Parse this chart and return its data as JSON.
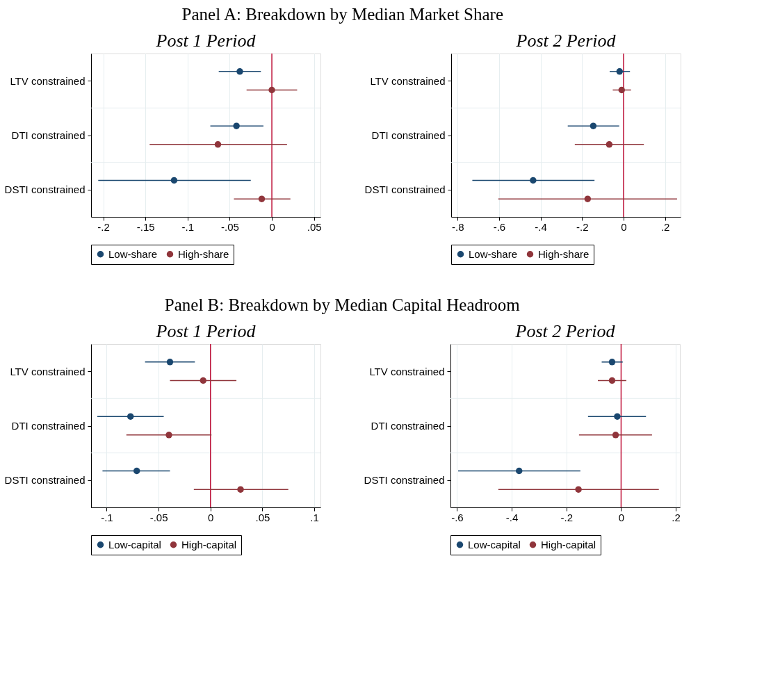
{
  "chart_data": [
    {
      "type": "scatter",
      "orientation": "horizontal",
      "title": "Post 1 Period",
      "annotations": [
        "Panel A: Breakdown by Median Market Share"
      ],
      "categories": [
        "LTV constrained",
        "DTI constrained",
        "DSTI constrained"
      ],
      "xlim": [
        -0.2145,
        0.0577
      ],
      "xticks": [
        {
          "value": -0.2,
          "label": "-.2"
        },
        {
          "value": -0.15,
          "label": "-.15"
        },
        {
          "value": -0.1,
          "label": "-.1"
        },
        {
          "value": -0.05,
          "label": "-.05"
        },
        0,
        {
          "value": 0.05,
          "label": ".05"
        }
      ],
      "grid": true,
      "legend": "bottom",
      "marker": "circle",
      "ref_lines": [
        {
          "axis": "x",
          "value": 0,
          "color": "#c0163c"
        }
      ],
      "series": [
        {
          "name": "Low-share",
          "color": "#1a476f",
          "values": [
            -0.038,
            -0.042,
            -0.116
          ],
          "errors": [
            [
              -0.063,
              -0.013
            ],
            [
              -0.073,
              -0.01
            ],
            [
              -0.206,
              -0.025
            ]
          ]
        },
        {
          "name": "High-share",
          "color": "#90353b",
          "values": [
            0.0,
            -0.064,
            -0.012
          ],
          "errors": [
            [
              -0.03,
              0.03
            ],
            [
              -0.145,
              0.018
            ],
            [
              -0.045,
              0.022
            ]
          ]
        }
      ]
    },
    {
      "type": "scatter",
      "orientation": "horizontal",
      "title": "Post 2 Period",
      "categories": [
        "LTV constrained",
        "DTI constrained",
        "DSTI constrained"
      ],
      "xlim": [
        -0.831,
        0.275
      ],
      "xticks": [
        {
          "value": -0.8,
          "label": "-.8"
        },
        {
          "value": -0.6,
          "label": "-.6"
        },
        {
          "value": -0.4,
          "label": "-.4"
        },
        {
          "value": -0.2,
          "label": "-.2"
        },
        0,
        {
          "value": 0.2,
          "label": ".2"
        }
      ],
      "grid": true,
      "legend": "bottom",
      "marker": "circle",
      "ref_lines": [
        {
          "axis": "x",
          "value": 0,
          "color": "#c0163c"
        }
      ],
      "series": [
        {
          "name": "Low-share",
          "color": "#1a476f",
          "values": [
            -0.019,
            -0.146,
            -0.436
          ],
          "errors": [
            [
              -0.067,
              0.031
            ],
            [
              -0.269,
              -0.021
            ],
            [
              -0.729,
              -0.14
            ]
          ]
        },
        {
          "name": "High-share",
          "color": "#90353b",
          "values": [
            -0.009,
            -0.069,
            -0.173
          ],
          "errors": [
            [
              -0.052,
              0.036
            ],
            [
              -0.235,
              0.098
            ],
            [
              -0.604,
              0.258
            ]
          ]
        }
      ]
    },
    {
      "type": "scatter",
      "orientation": "horizontal",
      "title": "Post 1 Period",
      "annotations": [
        "Panel B: Breakdown by Median Capital Headroom"
      ],
      "categories": [
        "LTV constrained",
        "DTI constrained",
        "DSTI constrained"
      ],
      "xlim": [
        -0.115,
        0.106
      ],
      "xticks": [
        {
          "value": -0.1,
          "label": "-.1"
        },
        {
          "value": -0.05,
          "label": "-.05"
        },
        0,
        {
          "value": 0.05,
          "label": ".05"
        },
        {
          "value": 0.1,
          "label": ".1"
        }
      ],
      "grid": true,
      "legend": "bottom",
      "marker": "circle",
      "ref_lines": [
        {
          "axis": "x",
          "value": 0,
          "color": "#c0163c"
        }
      ],
      "series": [
        {
          "name": "Low-capital",
          "color": "#1a476f",
          "values": [
            -0.039,
            -0.077,
            -0.071
          ],
          "errors": [
            [
              -0.063,
              -0.015
            ],
            [
              -0.109,
              -0.045
            ],
            [
              -0.104,
              -0.039
            ]
          ]
        },
        {
          "name": "High-capital",
          "color": "#90353b",
          "values": [
            -0.007,
            -0.04,
            0.029
          ],
          "errors": [
            [
              -0.039,
              0.025
            ],
            [
              -0.081,
              0.001
            ],
            [
              -0.016,
              0.075
            ]
          ]
        }
      ]
    },
    {
      "type": "scatter",
      "orientation": "horizontal",
      "title": "Post 2 Period",
      "categories": [
        "LTV constrained",
        "DTI constrained",
        "DSTI constrained"
      ],
      "xlim": [
        -0.624,
        0.215
      ],
      "xticks": [
        {
          "value": -0.6,
          "label": "-.6"
        },
        {
          "value": -0.4,
          "label": "-.4"
        },
        {
          "value": -0.2,
          "label": "-.2"
        },
        0,
        {
          "value": 0.2,
          "label": ".2"
        }
      ],
      "grid": true,
      "legend": "bottom",
      "marker": "circle",
      "ref_lines": [
        {
          "axis": "x",
          "value": 0,
          "color": "#c0163c"
        }
      ],
      "series": [
        {
          "name": "Low-capital",
          "color": "#1a476f",
          "values": [
            -0.033,
            -0.014,
            -0.373
          ],
          "errors": [
            [
              -0.071,
              0.006
            ],
            [
              -0.121,
              0.091
            ],
            [
              -0.596,
              -0.149
            ]
          ]
        },
        {
          "name": "High-capital",
          "color": "#90353b",
          "values": [
            -0.033,
            -0.02,
            -0.156
          ],
          "errors": [
            [
              -0.085,
              0.019
            ],
            [
              -0.154,
              0.113
            ],
            [
              -0.449,
              0.138
            ]
          ]
        }
      ]
    }
  ]
}
